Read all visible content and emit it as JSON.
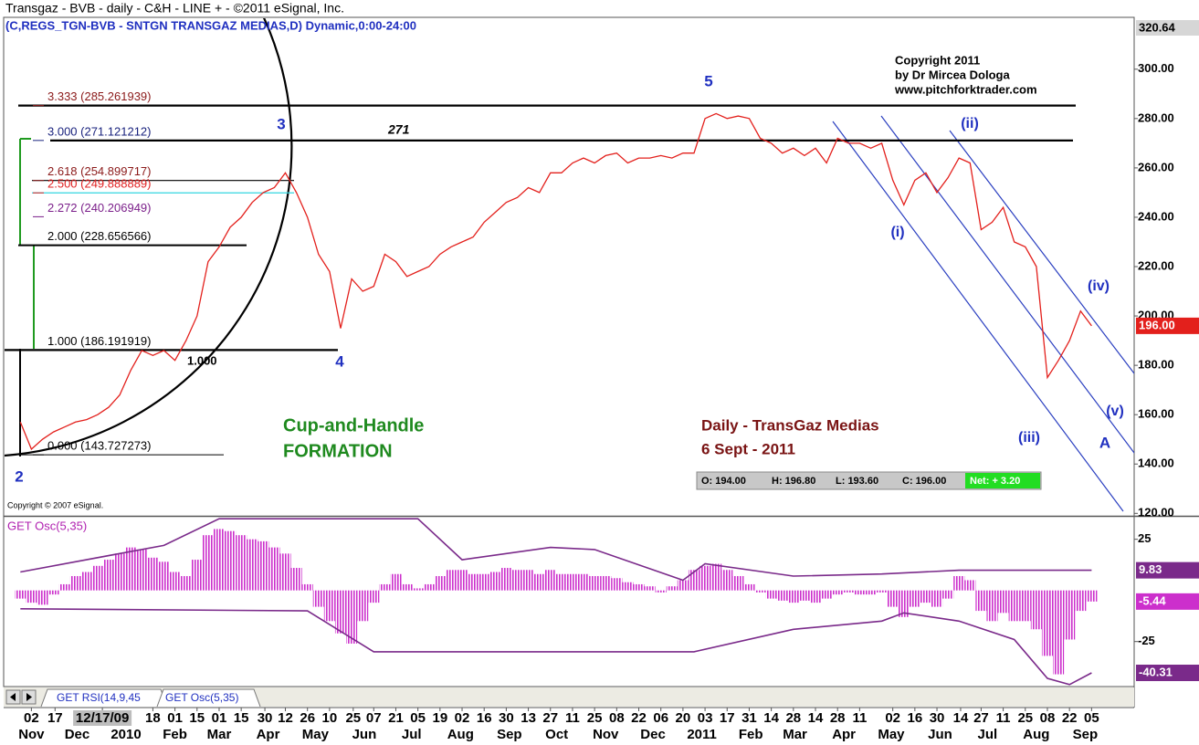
{
  "chart_data": [
    {
      "type": "line",
      "title": "Transgaz - BVB - daily - C&H - LINE + - ©2011 eSignal, Inc.",
      "subtitle": "(C,REGS_TGN-BVB - SNTGN TRANSGAZ MEDIAS,D) Dynamic,0:00-24:00",
      "color": "#e3201c",
      "x": [
        "2009-10-26",
        "2009-11-02",
        "2009-11-09",
        "2009-11-16",
        "2009-11-23",
        "2009-11-30",
        "2009-12-07",
        "2009-12-14",
        "2009-12-21",
        "2009-12-28",
        "2010-01-04",
        "2010-01-11",
        "2010-01-18",
        "2010-01-25",
        "2010-02-01",
        "2010-02-08",
        "2010-02-15",
        "2010-02-22",
        "2010-03-01",
        "2010-03-08",
        "2010-03-15",
        "2010-03-22",
        "2010-03-29",
        "2010-04-05",
        "2010-04-12",
        "2010-04-19",
        "2010-04-26",
        "2010-05-03",
        "2010-05-10",
        "2010-05-17",
        "2010-05-24",
        "2010-05-31",
        "2010-06-07",
        "2010-06-14",
        "2010-06-21",
        "2010-06-28",
        "2010-07-05",
        "2010-07-12",
        "2010-07-19",
        "2010-07-26",
        "2010-08-02",
        "2010-08-09",
        "2010-08-16",
        "2010-08-23",
        "2010-08-30",
        "2010-09-06",
        "2010-09-13",
        "2010-09-20",
        "2010-09-27",
        "2010-10-04",
        "2010-10-11",
        "2010-10-18",
        "2010-10-25",
        "2010-11-01",
        "2010-11-08",
        "2010-11-15",
        "2010-11-22",
        "2010-11-29",
        "2010-12-06",
        "2010-12-13",
        "2010-12-20",
        "2010-12-27",
        "2011-01-03",
        "2011-01-10",
        "2011-01-17",
        "2011-01-24",
        "2011-01-31",
        "2011-02-07",
        "2011-02-14",
        "2011-02-21",
        "2011-02-28",
        "2011-03-07",
        "2011-03-14",
        "2011-03-21",
        "2011-03-28",
        "2011-04-04",
        "2011-04-11",
        "2011-04-18",
        "2011-04-25",
        "2011-05-02",
        "2011-05-09",
        "2011-05-16",
        "2011-05-23",
        "2011-05-30",
        "2011-06-06",
        "2011-06-13",
        "2011-06-20",
        "2011-06-27",
        "2011-07-04",
        "2011-07-11",
        "2011-07-18",
        "2011-07-25",
        "2011-08-01",
        "2011-08-08",
        "2011-08-15",
        "2011-08-22",
        "2011-08-29",
        "2011-09-05"
      ],
      "values": [
        157,
        146,
        150,
        153,
        155,
        157,
        158,
        160,
        163,
        168,
        178,
        186,
        184,
        186,
        182,
        190,
        200,
        222,
        228,
        236,
        240,
        246,
        250,
        252,
        258,
        250,
        240,
        225,
        218,
        195,
        215,
        210,
        212,
        225,
        222,
        216,
        218,
        220,
        225,
        228,
        230,
        232,
        238,
        242,
        246,
        248,
        252,
        250,
        258,
        258,
        262,
        264,
        262,
        265,
        266,
        262,
        264,
        264,
        265,
        264,
        266,
        266,
        280,
        282,
        280,
        281,
        280,
        272,
        270,
        266,
        268,
        265,
        268,
        262,
        272,
        270,
        270,
        268,
        270,
        255,
        245,
        255,
        258,
        250,
        256,
        264,
        262,
        235,
        238,
        244,
        230,
        228,
        220,
        175,
        182,
        190,
        202,
        196
      ],
      "xlim": [
        "2009-10-16",
        "2011-10-02"
      ],
      "ylim": [
        119,
        320.64
      ],
      "yticks": [
        {
          "value": 120,
          "label": "120.00"
        },
        {
          "value": 140,
          "label": "140.00"
        },
        {
          "value": 160,
          "label": "160.00"
        },
        {
          "value": 180,
          "label": "180.00"
        },
        {
          "value": 200,
          "label": "200.00"
        },
        {
          "value": 220,
          "label": "220.00"
        },
        {
          "value": 240,
          "label": "240.00"
        },
        {
          "value": 260,
          "label": "260.00"
        },
        {
          "value": 280,
          "label": "280.00"
        },
        {
          "value": 300,
          "label": "300.00"
        }
      ],
      "xticks": [
        {
          "value": "2009-11-02",
          "label": "02"
        },
        {
          "value": "2009-11-17",
          "label": "17"
        },
        {
          "value": "2009-12-17",
          "label": "12/17/09"
        },
        {
          "value": "2010-01-18",
          "label": "18"
        },
        {
          "value": "2010-02-01",
          "label": "01"
        },
        {
          "value": "2010-02-15",
          "label": "15"
        },
        {
          "value": "2010-03-01",
          "label": "01"
        },
        {
          "value": "2010-03-15",
          "label": "15"
        },
        {
          "value": "2010-03-30",
          "label": "30"
        },
        {
          "value": "2010-04-12",
          "label": "12"
        },
        {
          "value": "2010-04-26",
          "label": "26"
        },
        {
          "value": "2010-05-10",
          "label": "10"
        },
        {
          "value": "2010-05-25",
          "label": "25"
        },
        {
          "value": "2010-06-07",
          "label": "07"
        },
        {
          "value": "2010-06-21",
          "label": "21"
        },
        {
          "value": "2010-07-05",
          "label": "05"
        },
        {
          "value": "2010-07-19",
          "label": "19"
        },
        {
          "value": "2010-08-02",
          "label": "02"
        },
        {
          "value": "2010-08-16",
          "label": "16"
        },
        {
          "value": "2010-08-30",
          "label": "30"
        },
        {
          "value": "2010-09-13",
          "label": "13"
        },
        {
          "value": "2010-09-27",
          "label": "27"
        },
        {
          "value": "2010-10-11",
          "label": "11"
        },
        {
          "value": "2010-10-25",
          "label": "25"
        },
        {
          "value": "2010-11-08",
          "label": "08"
        },
        {
          "value": "2010-11-22",
          "label": "22"
        },
        {
          "value": "2010-12-06",
          "label": "06"
        },
        {
          "value": "2010-12-20",
          "label": "20"
        },
        {
          "value": "2011-01-03",
          "label": "03"
        },
        {
          "value": "2011-01-17",
          "label": "17"
        },
        {
          "value": "2011-01-31",
          "label": "31"
        },
        {
          "value": "2011-02-14",
          "label": "14"
        },
        {
          "value": "2011-02-28",
          "label": "28"
        },
        {
          "value": "2011-03-14",
          "label": "14"
        },
        {
          "value": "2011-03-28",
          "label": "28"
        },
        {
          "value": "2011-04-11",
          "label": "11"
        },
        {
          "value": "2011-05-02",
          "label": "02"
        },
        {
          "value": "2011-05-16",
          "label": "16"
        },
        {
          "value": "2011-05-30",
          "label": "30"
        },
        {
          "value": "2011-06-14",
          "label": "14"
        },
        {
          "value": "2011-06-27",
          "label": "27"
        },
        {
          "value": "2011-07-11",
          "label": "11"
        },
        {
          "value": "2011-07-25",
          "label": "25"
        },
        {
          "value": "2011-08-08",
          "label": "08"
        },
        {
          "value": "2011-08-22",
          "label": "22"
        },
        {
          "value": "2011-09-05",
          "label": "05"
        }
      ],
      "month_ticks": [
        {
          "value": "2009-11-02",
          "label": "Nov"
        },
        {
          "value": "2009-12-01",
          "label": "Dec"
        },
        {
          "value": "2010-01-01",
          "label": "2010"
        },
        {
          "value": "2010-02-01",
          "label": "Feb"
        },
        {
          "value": "2010-03-01",
          "label": "Mar"
        },
        {
          "value": "2010-04-01",
          "label": "Apr"
        },
        {
          "value": "2010-05-01",
          "label": "May"
        },
        {
          "value": "2010-06-01",
          "label": "Jun"
        },
        {
          "value": "2010-07-01",
          "label": "Jul"
        },
        {
          "value": "2010-08-01",
          "label": "Aug"
        },
        {
          "value": "2010-09-01",
          "label": "Sep"
        },
        {
          "value": "2010-10-01",
          "label": "Oct"
        },
        {
          "value": "2010-11-01",
          "label": "Nov"
        },
        {
          "value": "2010-12-01",
          "label": "Dec"
        },
        {
          "value": "2011-01-01",
          "label": "2011"
        },
        {
          "value": "2011-02-01",
          "label": "Feb"
        },
        {
          "value": "2011-03-01",
          "label": "Mar"
        },
        {
          "value": "2011-04-01",
          "label": "Apr"
        },
        {
          "value": "2011-05-01",
          "label": "May"
        },
        {
          "value": "2011-06-01",
          "label": "Jun"
        },
        {
          "value": "2011-07-01",
          "label": "Jul"
        },
        {
          "value": "2011-08-01",
          "label": "Aug"
        },
        {
          "value": "2011-09-01",
          "label": "Sep"
        }
      ],
      "markers": [
        {
          "value": 196,
          "label": "196.00"
        }
      ],
      "levels": [
        {
          "value": 285.261939,
          "label": "3.333 (285.261939)",
          "color": "#8b1a1a"
        },
        {
          "value": 271.121212,
          "label": "3.000 (271.121212)",
          "color": "#1a237e"
        },
        {
          "value": 254.899717,
          "label": "2.618 (254.899717)",
          "color": "#8b1a1a"
        },
        {
          "value": 249.888889,
          "label": "2.500 (249.888889)",
          "color": "#e02020"
        },
        {
          "value": 240.206949,
          "label": "2.272 (240.206949)",
          "color": "#7b1f8a"
        },
        {
          "value": 228.656566,
          "label": "2.000 (228.656566)",
          "color": "#000000"
        },
        {
          "value": 186.191919,
          "label": "1.000 (186.191919)",
          "color": "#000000"
        },
        {
          "value": 143.727273,
          "label": "0.000 (143.727273)",
          "color": "#000000"
        }
      ],
      "annotations": [
        "5",
        "3",
        "271",
        "(ii)",
        "(i)",
        "(iv)",
        "(v)",
        "(iii)",
        "A",
        "4",
        "2",
        "1.000",
        "Cup-and-Handle",
        "FORMATION",
        "Daily - TransGaz Medias",
        "6 Sept - 2011",
        "Copyright 2011",
        "by Dr Mircea Dologa",
        "www.pitchforktrader.com",
        "Copyright © 2007 eSignal."
      ],
      "ohlc": [
        "O: 194.00",
        "H: 196.80",
        "L: 193.60",
        "C: 196.00",
        "Net: + 3.20"
      ]
    },
    {
      "type": "bar",
      "title": "GET Osc(5,35)",
      "color": "#cc2fcc",
      "x": [
        "2009-10-26",
        "2009-11-02",
        "2009-11-09",
        "2009-11-16",
        "2009-11-23",
        "2009-11-30",
        "2009-12-07",
        "2009-12-14",
        "2009-12-21",
        "2009-12-28",
        "2010-01-04",
        "2010-01-11",
        "2010-01-18",
        "2010-01-25",
        "2010-02-01",
        "2010-02-08",
        "2010-02-15",
        "2010-02-22",
        "2010-03-01",
        "2010-03-08",
        "2010-03-15",
        "2010-03-22",
        "2010-03-29",
        "2010-04-05",
        "2010-04-12",
        "2010-04-19",
        "2010-04-26",
        "2010-05-03",
        "2010-05-10",
        "2010-05-17",
        "2010-05-24",
        "2010-05-31",
        "2010-06-07",
        "2010-06-14",
        "2010-06-21",
        "2010-06-28",
        "2010-07-05",
        "2010-07-12",
        "2010-07-19",
        "2010-07-26",
        "2010-08-02",
        "2010-08-09",
        "2010-08-16",
        "2010-08-23",
        "2010-08-30",
        "2010-09-06",
        "2010-09-13",
        "2010-09-20",
        "2010-09-27",
        "2010-10-04",
        "2010-10-11",
        "2010-10-18",
        "2010-10-25",
        "2010-11-01",
        "2010-11-08",
        "2010-11-15",
        "2010-11-22",
        "2010-11-29",
        "2010-12-06",
        "2010-12-13",
        "2010-12-20",
        "2010-12-27",
        "2011-01-03",
        "2011-01-10",
        "2011-01-17",
        "2011-01-24",
        "2011-01-31",
        "2011-02-07",
        "2011-02-14",
        "2011-02-21",
        "2011-02-28",
        "2011-03-07",
        "2011-03-14",
        "2011-03-21",
        "2011-03-28",
        "2011-04-04",
        "2011-04-11",
        "2011-04-18",
        "2011-04-25",
        "2011-05-02",
        "2011-05-09",
        "2011-05-16",
        "2011-05-23",
        "2011-05-30",
        "2011-06-06",
        "2011-06-13",
        "2011-06-20",
        "2011-06-27",
        "2011-07-04",
        "2011-07-11",
        "2011-07-18",
        "2011-07-25",
        "2011-08-01",
        "2011-08-08",
        "2011-08-15",
        "2011-08-22",
        "2011-08-29",
        "2011-09-05"
      ],
      "values": [
        -4,
        -6,
        -7,
        -2,
        3,
        7,
        9,
        12,
        15,
        18,
        21,
        20,
        16,
        14,
        9,
        7,
        15,
        27,
        30,
        29,
        27,
        25,
        24,
        21,
        18,
        11,
        3,
        -8,
        -15,
        -21,
        -26,
        -15,
        -6,
        3,
        8,
        3,
        1,
        3,
        7,
        10,
        10,
        8,
        8,
        9,
        11,
        10,
        10,
        8,
        10,
        8,
        8,
        8,
        7,
        7,
        6,
        4,
        3,
        2,
        -1,
        2,
        5,
        10,
        12,
        13,
        10,
        7,
        3,
        -1,
        -4,
        -5,
        -6,
        -5,
        -6,
        -4,
        -2,
        -1,
        -2,
        -2,
        -1,
        -8,
        -13,
        -8,
        -6,
        -8,
        -4,
        7,
        5,
        -10,
        -15,
        -11,
        -15,
        -15,
        -19,
        -32,
        -41,
        -24,
        -10,
        -5.44
      ],
      "ylim": [
        -47,
        36
      ],
      "yticks": [
        25,
        -25
      ],
      "bands": [
        {
          "color": "#7a2a8a",
          "x": [
            "2009-10-26",
            "2009-12-28",
            "2010-01-25",
            "2010-03-01",
            "2010-07-05",
            "2010-08-02",
            "2010-09-27",
            "2010-10-25",
            "2010-12-20",
            "2011-01-03",
            "2011-02-28",
            "2011-04-25",
            "2011-06-13",
            "2011-09-05"
          ],
          "values": [
            9,
            18,
            22,
            35,
            35,
            15,
            21,
            20,
            5,
            13,
            7,
            8,
            9.83,
            9.83
          ]
        },
        {
          "color": "#7a2a8a",
          "x": [
            "2009-10-26",
            "2010-04-26",
            "2010-06-07",
            "2010-12-27",
            "2011-02-28",
            "2011-04-25",
            "2011-05-09",
            "2011-06-13",
            "2011-07-18",
            "2011-08-08",
            "2011-08-22",
            "2011-09-05"
          ],
          "values": [
            -9,
            -10,
            -30,
            -30,
            -19,
            -15,
            -11,
            -15,
            -24,
            -43,
            -46,
            -40.31
          ]
        }
      ]
    }
  ],
  "tabs": [
    "GET RSI(14,9,45",
    "GET Osc(5,35)"
  ]
}
